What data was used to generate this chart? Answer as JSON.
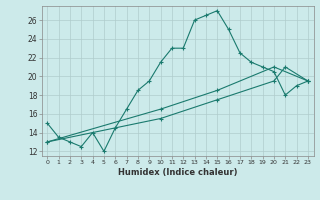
{
  "xlabel": "Humidex (Indice chaleur)",
  "bg_color": "#cceaea",
  "grid_color": "#b0cccc",
  "line_color": "#1a7a6e",
  "xlim": [
    -0.5,
    23.5
  ],
  "ylim": [
    11.5,
    27.5
  ],
  "yticks": [
    12,
    14,
    16,
    18,
    20,
    22,
    24,
    26
  ],
  "xticks": [
    0,
    1,
    2,
    3,
    4,
    5,
    6,
    7,
    8,
    9,
    10,
    11,
    12,
    13,
    14,
    15,
    16,
    17,
    18,
    19,
    20,
    21,
    22,
    23
  ],
  "line1_x": [
    0,
    1,
    2,
    3,
    4,
    5,
    6,
    7,
    8,
    9,
    10,
    11,
    12,
    13,
    14,
    15,
    16,
    17,
    18,
    19,
    20,
    21,
    22,
    23
  ],
  "line1_y": [
    15,
    13.5,
    13,
    12.5,
    14,
    12,
    14.5,
    16.5,
    18.5,
    19.5,
    21.5,
    23,
    23,
    26,
    26.5,
    27,
    25,
    22.5,
    21.5,
    21,
    20.5,
    18,
    19,
    19.5
  ],
  "line2_x": [
    0,
    10,
    15,
    20,
    21,
    23
  ],
  "line2_y": [
    13,
    15.5,
    17.5,
    19.5,
    21,
    19.5
  ],
  "line3_x": [
    0,
    10,
    15,
    20,
    23
  ],
  "line3_y": [
    13,
    16.5,
    18.5,
    21,
    19.5
  ]
}
